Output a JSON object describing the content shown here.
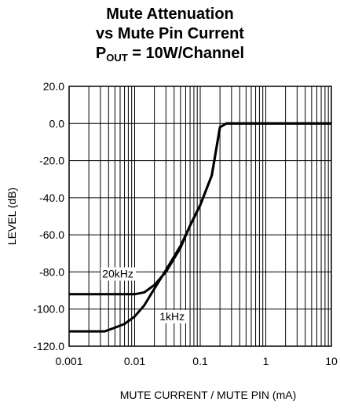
{
  "title": {
    "line1": "Mute Attenuation",
    "line2": "vs Mute Pin Current",
    "line3_prefix": "P",
    "line3_sub": "OUT",
    "line3_suffix": " = 10W/Channel"
  },
  "chart_data": {
    "type": "line",
    "title": "Mute Attenuation vs Mute Pin Current P_OUT = 10W/Channel",
    "xlabel": "MUTE CURRENT / MUTE PIN (mA)",
    "ylabel": "LEVEL (dB)",
    "xscale": "log",
    "xlim": [
      0.001,
      10
    ],
    "ylim": [
      -120,
      20
    ],
    "xticks": [
      0.001,
      0.01,
      0.1,
      1,
      10
    ],
    "xtick_labels": [
      "0.001",
      "0.01",
      "0.1",
      "1",
      "10"
    ],
    "yticks": [
      20,
      0,
      -20,
      -40,
      -60,
      -80,
      -100,
      -120
    ],
    "ytick_labels": [
      "20.0",
      "0.0",
      "-20.0",
      "-40.0",
      "-60.0",
      "-80.0",
      "-100.0",
      "-120.0"
    ],
    "grid": true,
    "series": [
      {
        "name": "20kHz",
        "x": [
          0.001,
          0.002,
          0.005,
          0.01,
          0.014,
          0.02,
          0.03,
          0.05,
          0.07,
          0.1,
          0.15,
          0.2,
          0.25,
          0.3,
          0.5,
          1,
          2,
          5,
          10
        ],
        "y": [
          -92,
          -92,
          -92,
          -92,
          -91,
          -87,
          -80,
          -67,
          -55,
          -44,
          -28,
          -2,
          0,
          0,
          0,
          0,
          0,
          0,
          0
        ]
      },
      {
        "name": "1kHz",
        "x": [
          0.001,
          0.002,
          0.0035,
          0.005,
          0.007,
          0.01,
          0.014,
          0.02,
          0.03,
          0.05,
          0.07,
          0.1,
          0.15,
          0.2,
          0.25,
          0.3,
          0.5,
          1,
          2,
          5,
          10
        ],
        "y": [
          -112,
          -112,
          -112,
          -110,
          -108,
          -104,
          -98,
          -89,
          -79,
          -66,
          -55,
          -44,
          -28,
          -2,
          0,
          0,
          0,
          0,
          0,
          0,
          0
        ]
      }
    ],
    "annotations": [
      {
        "text": "20kHz",
        "x": 0.0032,
        "y": -83
      },
      {
        "text": "1kHz",
        "x": 0.024,
        "y": -106
      }
    ]
  }
}
